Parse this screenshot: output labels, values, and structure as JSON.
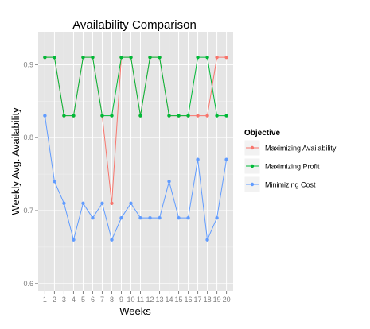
{
  "chart_data": {
    "type": "line",
    "title": "Availability Comparison",
    "xlabel": "Weeks",
    "ylabel": "Weekly Avg. Availability",
    "x": [
      1,
      2,
      3,
      4,
      5,
      6,
      7,
      8,
      9,
      10,
      11,
      12,
      13,
      14,
      15,
      16,
      17,
      18,
      19,
      20
    ],
    "xlim": [
      0.3,
      20.7
    ],
    "ylim": [
      0.59,
      0.945
    ],
    "y_ticks": [
      0.6,
      0.7,
      0.8,
      0.9
    ],
    "y_tick_labels": [
      "0.6",
      "0.7",
      "0.8",
      "0.9"
    ],
    "grid": true,
    "legend": {
      "title": "Objective",
      "placement": "right"
    },
    "series": [
      {
        "name": "Maximizing Availability",
        "color": "#f8766d",
        "values": [
          0.91,
          0.91,
          0.83,
          0.83,
          0.91,
          0.91,
          0.83,
          0.71,
          0.91,
          0.91,
          0.83,
          0.91,
          0.91,
          0.83,
          0.83,
          0.83,
          0.83,
          0.83,
          0.91,
          0.91
        ]
      },
      {
        "name": "Maximizing Profit",
        "color": "#00ba38",
        "values": [
          0.91,
          0.91,
          0.83,
          0.83,
          0.91,
          0.91,
          0.83,
          0.83,
          0.91,
          0.91,
          0.83,
          0.91,
          0.91,
          0.83,
          0.83,
          0.83,
          0.91,
          0.91,
          0.83,
          0.83
        ]
      },
      {
        "name": "Minimizing Cost",
        "color": "#619cff",
        "values": [
          0.83,
          0.74,
          0.71,
          0.66,
          0.71,
          0.69,
          0.71,
          0.66,
          0.69,
          0.71,
          0.69,
          0.69,
          0.69,
          0.74,
          0.69,
          0.69,
          0.77,
          0.66,
          0.69,
          0.77
        ]
      }
    ]
  }
}
